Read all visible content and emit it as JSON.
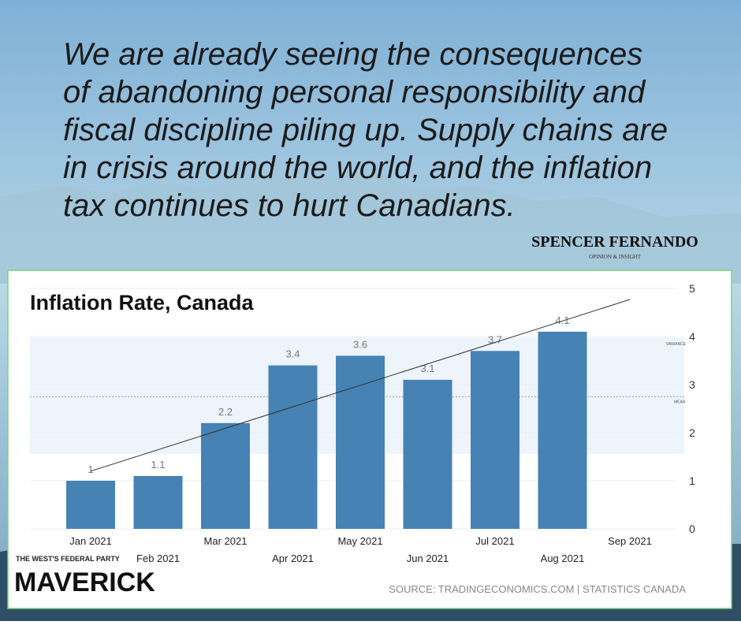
{
  "quote": {
    "lines": [
      "We are already seeing the consequences",
      "of abandoning personal responsibility and",
      "fiscal discipline piling up. Supply chains are",
      "in crisis around the world, and the inflation",
      "tax continues to hurt Canadians."
    ]
  },
  "brand": {
    "name": "SPENCER FERNANDO",
    "tagline": "OPINION & INSIGHT"
  },
  "chart_data": {
    "type": "bar",
    "title": "Inflation Rate, Canada",
    "categories": [
      "Jan 2021",
      "Feb 2021",
      "Mar 2021",
      "Apr 2021",
      "May 2021",
      "Jun 2021",
      "Jul 2021",
      "Aug 2021",
      "Sep 2021"
    ],
    "values": [
      1,
      1.1,
      2.2,
      3.4,
      3.6,
      3.1,
      3.7,
      4.1,
      null
    ],
    "color": "#4682b4",
    "ylim": [
      0,
      5
    ],
    "yticks": [
      0,
      1,
      2,
      3,
      4,
      5
    ],
    "trend_line": [
      1.2,
      4.77
    ],
    "variance_band": [
      1.56,
      3.98
    ],
    "variance_label": "VARIANCE",
    "mean": 2.75,
    "mean_label": "MEAN",
    "source": "SOURCE: TRADINGECONOMICS.COM | STATISTICS CANADA"
  },
  "footer": {
    "party": "THE WEST'S FEDERAL PARTY",
    "logo": "MAVERICK"
  }
}
